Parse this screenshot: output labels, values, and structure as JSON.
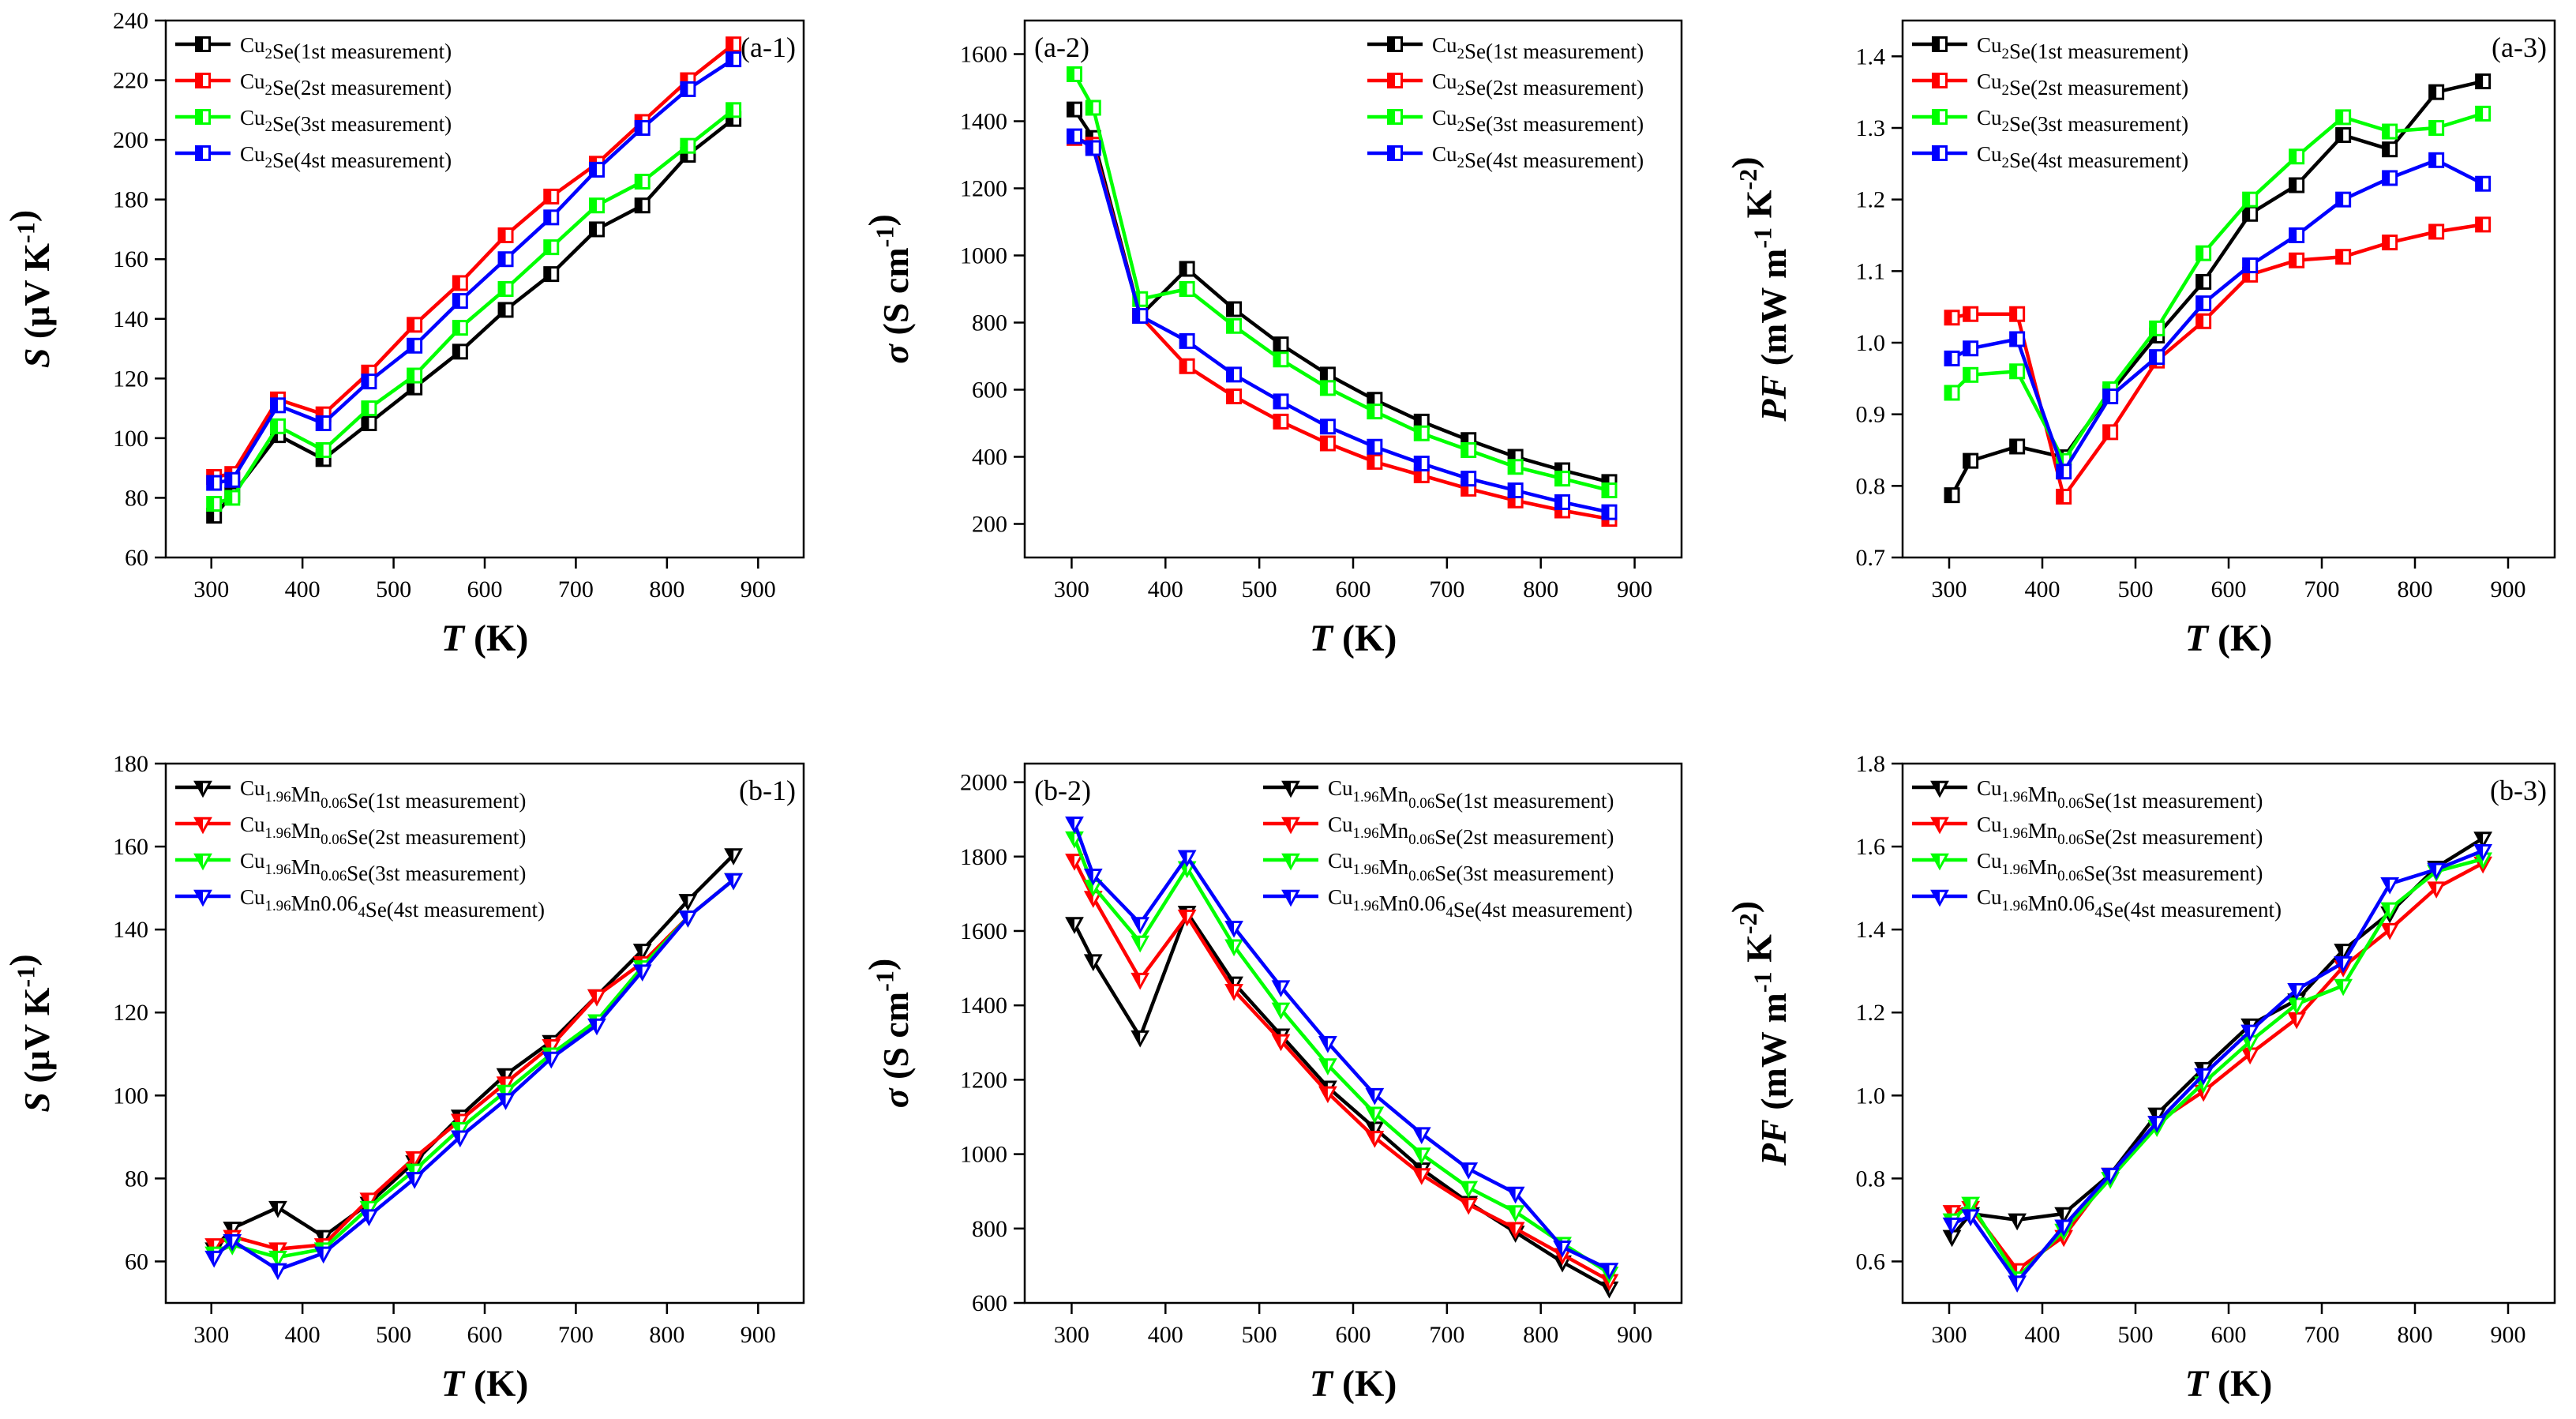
{
  "figure": {
    "colors": {
      "black": "#000000",
      "red": "#ff0000",
      "green": "#00ff00",
      "blue": "#0000ff"
    },
    "x_label_var": "T",
    "x_label_unit": " (K)"
  },
  "chart_data": [
    {
      "id": "a-1",
      "type": "line",
      "marker": "square",
      "panel_label": "(a-1)",
      "label_side": "right",
      "ylabel_var": "S",
      "ylabel_unit": " (μV K⁻¹)",
      "xlim": [
        250,
        950
      ],
      "xticks": [
        300,
        400,
        500,
        600,
        700,
        800,
        900
      ],
      "ylim": [
        60,
        240
      ],
      "yticks": [
        60,
        80,
        100,
        120,
        140,
        160,
        180,
        200,
        220,
        240
      ],
      "x": [
        303,
        323,
        373,
        423,
        473,
        523,
        573,
        623,
        673,
        723,
        773,
        823,
        873
      ],
      "legend_pos": "top-left",
      "series": [
        {
          "name": "Cu₂Se(1st measurement)",
          "color": "black",
          "values": [
            74,
            81,
            101,
            93,
            105,
            117,
            129,
            143,
            155,
            170,
            178,
            195,
            207
          ]
        },
        {
          "name": "Cu₂Se(2st measurement)",
          "color": "red",
          "values": [
            87,
            88,
            113,
            108,
            122,
            138,
            152,
            168,
            181,
            192,
            206,
            220,
            232
          ]
        },
        {
          "name": "Cu₂Se(3st measurement)",
          "color": "green",
          "values": [
            78,
            80,
            104,
            96,
            110,
            121,
            137,
            150,
            164,
            178,
            186,
            198,
            210
          ]
        },
        {
          "name": "Cu₂Se(4st measurement)",
          "color": "blue",
          "values": [
            85,
            86,
            111,
            105,
            119,
            131,
            146,
            160,
            174,
            190,
            204,
            217,
            227
          ]
        }
      ]
    },
    {
      "id": "a-2",
      "type": "line",
      "marker": "square",
      "panel_label": "(a-2)",
      "label_side": "left",
      "ylabel_var": "σ",
      "ylabel_unit": " (S cm⁻¹)",
      "xlim": [
        250,
        950
      ],
      "xticks": [
        300,
        400,
        500,
        600,
        700,
        800,
        900
      ],
      "ylim": [
        100,
        1700
      ],
      "yticks": [
        200,
        400,
        600,
        800,
        1000,
        1200,
        1400,
        1600
      ],
      "x": [
        303,
        323,
        373,
        423,
        473,
        523,
        573,
        623,
        673,
        723,
        773,
        823,
        873
      ],
      "legend_pos": "top-right",
      "series": [
        {
          "name": "Cu₂Se(1st measurement)",
          "color": "black",
          "values": [
            1435,
            1350,
            820,
            960,
            840,
            735,
            645,
            570,
            505,
            450,
            400,
            360,
            325
          ]
        },
        {
          "name": "Cu₂Se(2st measurement)",
          "color": "red",
          "values": [
            1350,
            1330,
            820,
            670,
            580,
            505,
            440,
            385,
            345,
            305,
            270,
            240,
            215
          ]
        },
        {
          "name": "Cu₂Se(3st measurement)",
          "color": "green",
          "values": [
            1540,
            1440,
            870,
            900,
            790,
            690,
            605,
            535,
            470,
            420,
            370,
            335,
            300
          ]
        },
        {
          "name": "Cu₂Se(4st measurement)",
          "color": "blue",
          "values": [
            1355,
            1320,
            820,
            745,
            645,
            565,
            490,
            430,
            380,
            335,
            300,
            265,
            235
          ]
        }
      ]
    },
    {
      "id": "a-3",
      "type": "line",
      "marker": "square",
      "panel_label": "(a-3)",
      "label_side": "right",
      "ylabel_var": "PF",
      "ylabel_unit": " (mW m⁻¹ K⁻²)",
      "xlim": [
        250,
        950
      ],
      "xticks": [
        300,
        400,
        500,
        600,
        700,
        800,
        900
      ],
      "ylim": [
        0.7,
        1.45
      ],
      "yticks": [
        0.7,
        0.8,
        0.9,
        1.0,
        1.1,
        1.2,
        1.3,
        1.4
      ],
      "x": [
        303,
        323,
        373,
        423,
        473,
        523,
        573,
        623,
        673,
        723,
        773,
        823,
        873
      ],
      "legend_pos": "top-left",
      "series": [
        {
          "name": "Cu₂Se(1st measurement)",
          "color": "black",
          "values": [
            0.787,
            0.835,
            0.855,
            0.84,
            0.93,
            1.01,
            1.085,
            1.18,
            1.22,
            1.29,
            1.27,
            1.35,
            1.365
          ]
        },
        {
          "name": "Cu₂Se(2st measurement)",
          "color": "red",
          "values": [
            1.035,
            1.04,
            1.04,
            0.785,
            0.875,
            0.975,
            1.03,
            1.095,
            1.115,
            1.12,
            1.14,
            1.155,
            1.165
          ]
        },
        {
          "name": "Cu₂Se(3st measurement)",
          "color": "green",
          "values": [
            0.93,
            0.955,
            0.96,
            0.835,
            0.935,
            1.02,
            1.125,
            1.2,
            1.26,
            1.315,
            1.295,
            1.3,
            1.32
          ]
        },
        {
          "name": "Cu₂Se(4st measurement)",
          "color": "blue",
          "values": [
            0.978,
            0.992,
            1.005,
            0.82,
            0.925,
            0.98,
            1.055,
            1.108,
            1.15,
            1.2,
            1.23,
            1.255,
            1.222
          ]
        }
      ]
    },
    {
      "id": "b-1",
      "type": "line",
      "marker": "triangle-down",
      "panel_label": "(b-1)",
      "label_side": "right",
      "ylabel_var": "S",
      "ylabel_unit": " (μV K⁻¹)",
      "xlim": [
        250,
        950
      ],
      "xticks": [
        300,
        400,
        500,
        600,
        700,
        800,
        900
      ],
      "ylim": [
        50,
        180
      ],
      "yticks": [
        60,
        80,
        100,
        120,
        140,
        160,
        180
      ],
      "x": [
        303,
        323,
        373,
        423,
        473,
        523,
        573,
        623,
        673,
        723,
        773,
        823,
        873
      ],
      "legend_pos": "top-left",
      "series": [
        {
          "name": "Cu₁.₉₆Mn₀.₀₆Se(1st measurement)",
          "color": "black",
          "values": [
            63,
            68,
            73,
            66,
            74,
            84,
            95,
            105,
            113,
            124,
            135,
            147,
            158
          ]
        },
        {
          "name": "Cu₁.₉₆Mn₀.₀₆Se(2st measurement)",
          "color": "red",
          "values": [
            64,
            66,
            63,
            64,
            75,
            85,
            94,
            103,
            112,
            124,
            132,
            143,
            152
          ]
        },
        {
          "name": "Cu₁.₉₆Mn₀.₀₆Se(3st measurement)",
          "color": "green",
          "values": [
            62,
            64,
            61,
            63,
            73,
            82,
            92,
            101,
            110,
            118,
            131,
            143,
            152
          ]
        },
        {
          "name": "Cu₁.₉₆Mn0.06₄Se(4st measurement)",
          "color": "blue",
          "values": [
            61,
            65,
            58,
            62,
            71,
            80,
            90,
            99,
            109,
            117,
            130,
            143,
            152
          ]
        }
      ]
    },
    {
      "id": "b-2",
      "type": "line",
      "marker": "triangle-down",
      "panel_label": "(b-2)",
      "label_side": "left",
      "ylabel_var": "σ",
      "ylabel_unit": " (S cm⁻¹)",
      "xlim": [
        250,
        950
      ],
      "xticks": [
        300,
        400,
        500,
        600,
        700,
        800,
        900
      ],
      "ylim": [
        600,
        2050
      ],
      "yticks": [
        600,
        800,
        1000,
        1200,
        1400,
        1600,
        1800,
        2000
      ],
      "x": [
        303,
        323,
        373,
        423,
        473,
        523,
        573,
        623,
        673,
        723,
        773,
        823,
        873
      ],
      "legend_pos": "top-right",
      "series": [
        {
          "name": "Cu₁.₉₆Mn₀.₀₆Se(1st measurement)",
          "color": "black",
          "values": [
            1620,
            1520,
            1315,
            1650,
            1460,
            1320,
            1180,
            1070,
            960,
            870,
            790,
            710,
            640
          ]
        },
        {
          "name": "Cu₁.₉₆Mn₀.₀₆Se(2st measurement)",
          "color": "red",
          "values": [
            1790,
            1690,
            1470,
            1640,
            1440,
            1305,
            1165,
            1045,
            945,
            865,
            800,
            730,
            660
          ]
        },
        {
          "name": "Cu₁.₉₆Mn₀.₀₆Se(3st measurement)",
          "color": "green",
          "values": [
            1850,
            1720,
            1570,
            1770,
            1560,
            1390,
            1240,
            1110,
            1000,
            910,
            845,
            760,
            680
          ]
        },
        {
          "name": "Cu₁.₉₆Mn0.06₄Se(4st measurement)",
          "color": "blue",
          "values": [
            1890,
            1750,
            1620,
            1800,
            1610,
            1450,
            1300,
            1160,
            1055,
            960,
            895,
            750,
            690
          ]
        }
      ]
    },
    {
      "id": "b-3",
      "type": "line",
      "marker": "triangle-down",
      "panel_label": "(b-3)",
      "label_side": "right",
      "ylabel_var": "PF",
      "ylabel_unit": " (mW m⁻¹ K⁻²)",
      "xlim": [
        250,
        950
      ],
      "xticks": [
        300,
        400,
        500,
        600,
        700,
        800,
        900
      ],
      "ylim": [
        0.5,
        1.8
      ],
      "yticks": [
        0.6,
        0.8,
        1.0,
        1.2,
        1.4,
        1.6,
        1.8
      ],
      "x": [
        303,
        323,
        373,
        423,
        473,
        523,
        573,
        623,
        673,
        723,
        773,
        823,
        873
      ],
      "legend_pos": "top-left",
      "series": [
        {
          "name": "Cu₁.₉₆Mn₀.₀₆Se(1st measurement)",
          "color": "black",
          "values": [
            0.66,
            0.715,
            0.7,
            0.715,
            0.81,
            0.955,
            1.065,
            1.17,
            1.23,
            1.35,
            1.44,
            1.55,
            1.62
          ]
        },
        {
          "name": "Cu₁.₉₆Mn₀.₀₆Se(2st measurement)",
          "color": "red",
          "values": [
            0.72,
            0.73,
            0.58,
            0.66,
            0.81,
            0.935,
            1.01,
            1.1,
            1.185,
            1.31,
            1.4,
            1.5,
            1.56
          ]
        },
        {
          "name": "Cu₁.₉₆Mn₀.₀₆Se(3st measurement)",
          "color": "green",
          "values": [
            0.7,
            0.74,
            0.56,
            0.675,
            0.8,
            0.925,
            1.03,
            1.13,
            1.22,
            1.265,
            1.45,
            1.54,
            1.57
          ]
        },
        {
          "name": "Cu₁.₉₆Mn0.06₄Se(4st measurement)",
          "color": "blue",
          "values": [
            0.69,
            0.71,
            0.55,
            0.685,
            0.81,
            0.935,
            1.05,
            1.155,
            1.255,
            1.32,
            1.51,
            1.545,
            1.59
          ]
        }
      ]
    }
  ]
}
